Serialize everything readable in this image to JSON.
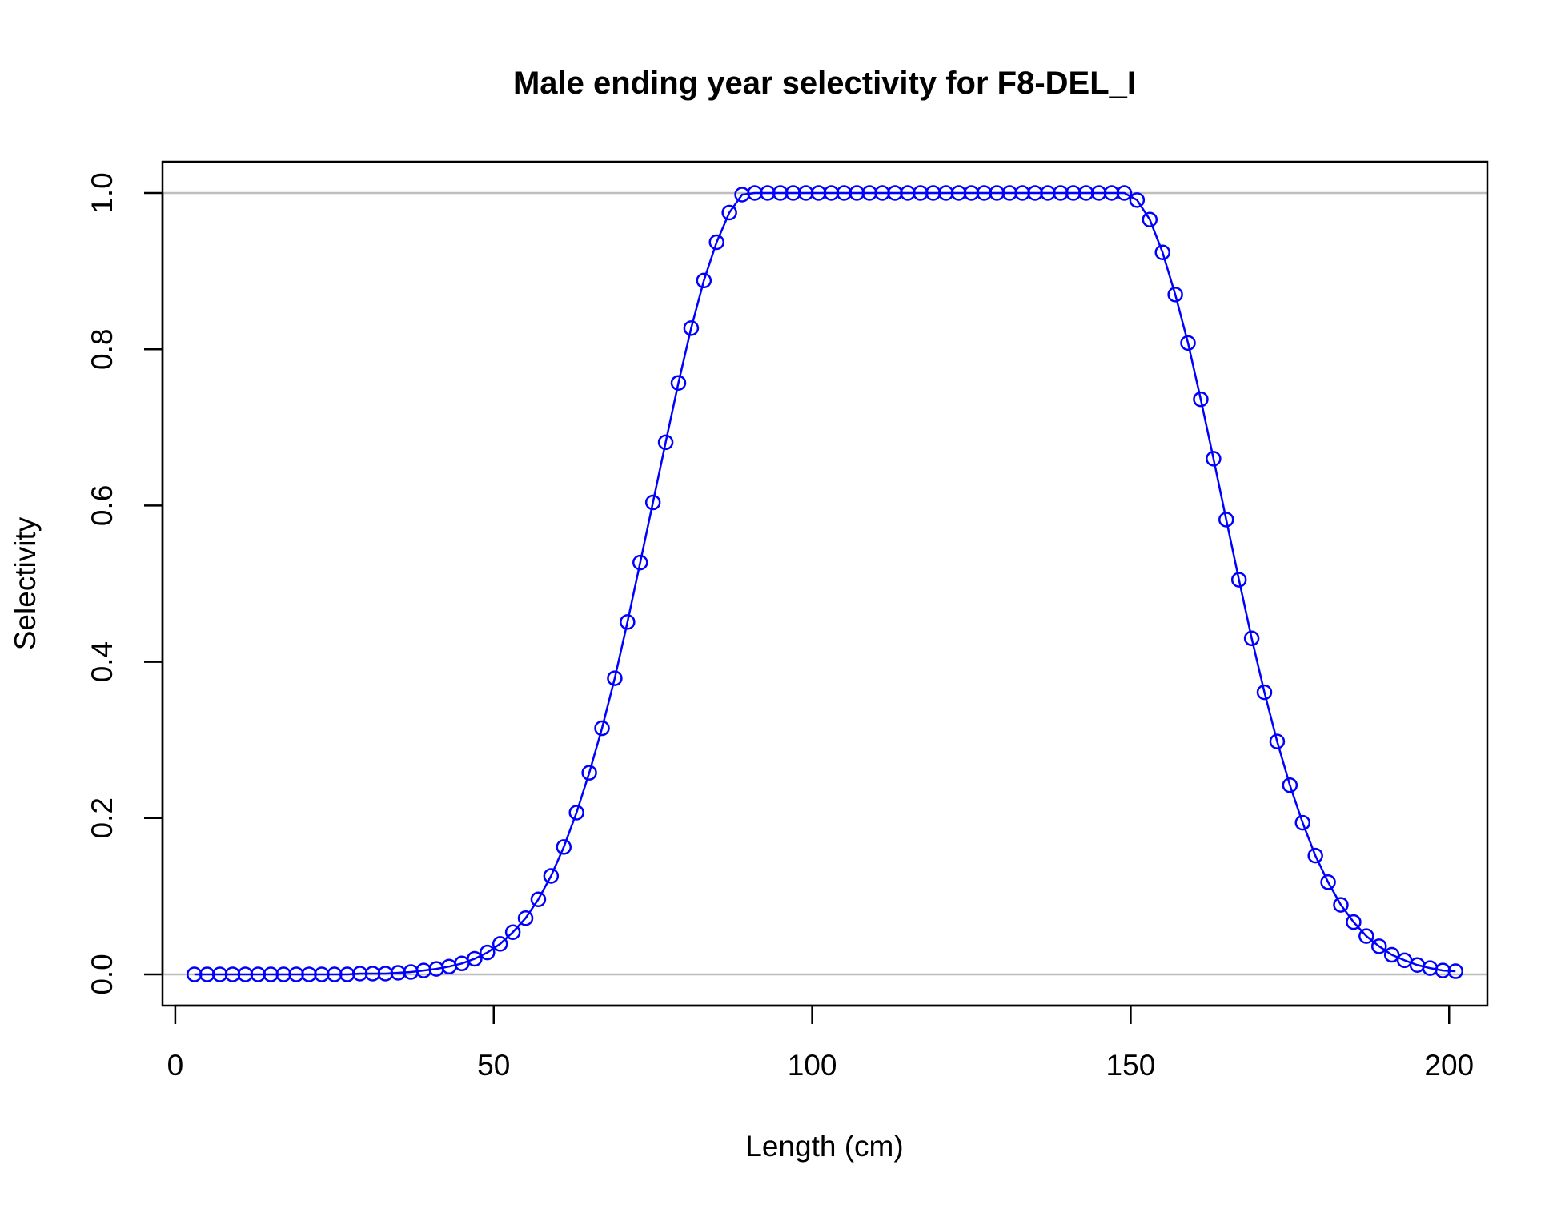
{
  "chart_data": {
    "type": "line",
    "title": "Male ending year selectivity for F8-DEL_I",
    "xlabel": "Length (cm)",
    "ylabel": "Selectivity",
    "xlim": [
      -2,
      206
    ],
    "ylim": [
      -0.04,
      1.04
    ],
    "x_ticks": [
      0,
      50,
      100,
      150,
      200
    ],
    "y_ticks": [
      0.0,
      0.2,
      0.4,
      0.6,
      0.8,
      1.0
    ],
    "x_tick_labels": [
      "0",
      "50",
      "100",
      "150",
      "200"
    ],
    "y_tick_labels": [
      "0.0",
      "0.2",
      "0.4",
      "0.6",
      "0.8",
      "1.0"
    ],
    "reference_lines_y": [
      0,
      1
    ],
    "grid": false,
    "colors": {
      "series": "#0000ff",
      "reference": "#bebebe",
      "axis": "#000000"
    },
    "series": [
      {
        "marker": "open-circle",
        "line": true,
        "x": [
          3,
          5,
          7,
          9,
          11,
          13,
          15,
          17,
          19,
          21,
          23,
          25,
          27,
          29,
          31,
          33,
          35,
          37,
          39,
          41,
          43,
          45,
          47,
          49,
          51,
          53,
          55,
          57,
          59,
          61,
          63,
          65,
          67,
          69,
          71,
          73,
          75,
          77,
          79,
          81,
          83,
          85,
          87,
          89,
          91,
          93,
          95,
          97,
          99,
          101,
          103,
          105,
          107,
          109,
          111,
          113,
          115,
          117,
          119,
          121,
          123,
          125,
          127,
          129,
          131,
          133,
          135,
          137,
          139,
          141,
          143,
          145,
          147,
          149,
          151,
          153,
          155,
          157,
          159,
          161,
          163,
          165,
          167,
          169,
          171,
          173,
          175,
          177,
          179,
          181,
          183,
          185,
          187,
          189,
          191,
          193,
          195,
          197,
          199,
          201
        ],
        "y": [
          0.0,
          0.0,
          0.0,
          0.0,
          0.0,
          0.0,
          0.0,
          0.0,
          0.0,
          0.0,
          0.0,
          0.0,
          0.0,
          0.001,
          0.001,
          0.001,
          0.002,
          0.003,
          0.005,
          0.007,
          0.01,
          0.014,
          0.02,
          0.028,
          0.039,
          0.054,
          0.072,
          0.096,
          0.126,
          0.163,
          0.207,
          0.258,
          0.315,
          0.379,
          0.451,
          0.527,
          0.604,
          0.681,
          0.757,
          0.827,
          0.888,
          0.937,
          0.975,
          0.998,
          1.0,
          1.0,
          1.0,
          1.0,
          1.0,
          1.0,
          1.0,
          1.0,
          1.0,
          1.0,
          1.0,
          1.0,
          1.0,
          1.0,
          1.0,
          1.0,
          1.0,
          1.0,
          1.0,
          1.0,
          1.0,
          1.0,
          1.0,
          1.0,
          1.0,
          1.0,
          1.0,
          1.0,
          1.0,
          1.0,
          0.991,
          0.966,
          0.924,
          0.87,
          0.808,
          0.736,
          0.66,
          0.582,
          0.505,
          0.43,
          0.361,
          0.298,
          0.242,
          0.194,
          0.152,
          0.118,
          0.089,
          0.067,
          0.049,
          0.036,
          0.025,
          0.018,
          0.012,
          0.008,
          0.005,
          0.004
        ]
      }
    ]
  }
}
